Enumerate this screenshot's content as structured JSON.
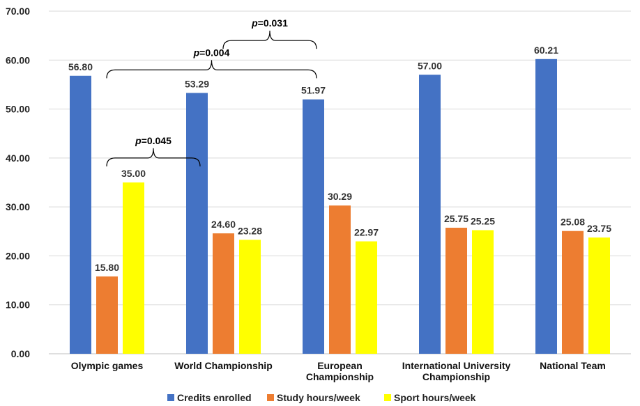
{
  "chart_data": {
    "type": "bar",
    "title": "",
    "xlabel": "",
    "ylabel": "",
    "ylim": [
      0,
      70
    ],
    "yticks": [
      0,
      10,
      20,
      30,
      40,
      50,
      60,
      70
    ],
    "ytick_labels": [
      "0.00",
      "10.00",
      "20.00",
      "30.00",
      "40.00",
      "50.00",
      "60.00",
      "70.00"
    ],
    "grid": true,
    "legend_position": "bottom",
    "categories": [
      [
        "Olympic games"
      ],
      [
        "World Championship"
      ],
      [
        "European",
        "Championship"
      ],
      [
        "International University",
        "Championship"
      ],
      [
        "National Team"
      ]
    ],
    "series": [
      {
        "name": "Credits enrolled",
        "color": "#4472c4",
        "values": [
          56.8,
          53.29,
          51.97,
          57.0,
          60.21
        ],
        "labels": [
          "56.80",
          "53.29",
          "51.97",
          "57.00",
          "60.21"
        ]
      },
      {
        "name": "Study hours/week",
        "color": "#ed7d31",
        "values": [
          15.8,
          24.6,
          30.29,
          25.75,
          25.08
        ],
        "labels": [
          "15.80",
          "24.60",
          "30.29",
          "25.75",
          "25.08"
        ]
      },
      {
        "name": "Sport hours/week",
        "color": "#ffff00",
        "values": [
          35.0,
          23.28,
          22.97,
          25.25,
          23.75
        ],
        "labels": [
          "35.00",
          "23.28",
          "22.97",
          "25.25",
          "23.75"
        ]
      }
    ],
    "annotations": [
      {
        "p_prefix": "p",
        "p_value": "=0.045",
        "from_category": 0,
        "to_category": 1,
        "level": 40
      },
      {
        "p_prefix": "p",
        "p_value": "=0.004",
        "from_category": 0,
        "to_category": 2,
        "level": 58
      },
      {
        "p_prefix": "p",
        "p_value": "=0.031",
        "from_category": 1,
        "to_category": 2,
        "level": 64
      }
    ]
  }
}
